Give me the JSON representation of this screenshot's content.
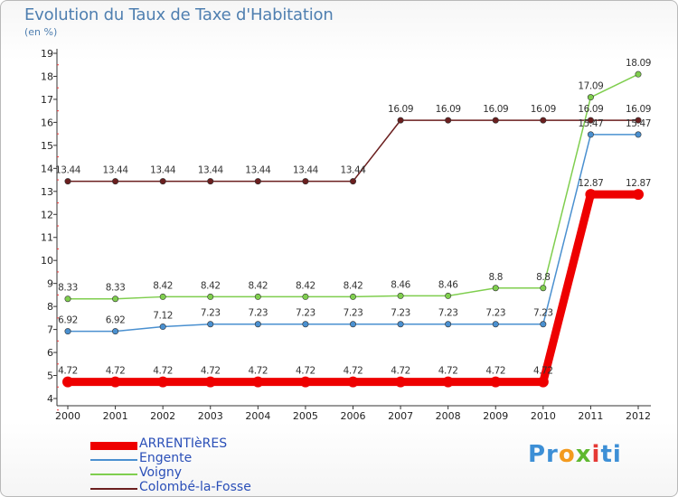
{
  "title": "Evolution du Taux de Taxe d'Habitation",
  "subtitle": "(en %)",
  "logo": {
    "text_parts": [
      "Pr",
      "o",
      "x",
      "i",
      "ti"
    ],
    "colors": [
      "#3d8fd6",
      "#f39a1e",
      "#5fb830",
      "#e53935",
      "#3d8fd6"
    ]
  },
  "chart_data": {
    "type": "line",
    "title": "Evolution du Taux de Taxe d'Habitation",
    "ylabel": "(en %)",
    "xlabel": "",
    "ylim": [
      4,
      19
    ],
    "yticks": [
      4,
      5,
      6,
      7,
      8,
      9,
      10,
      11,
      12,
      13,
      14,
      15,
      16,
      17,
      18,
      19
    ],
    "categories": [
      "2000",
      "2001",
      "2002",
      "2003",
      "2004",
      "2005",
      "2006",
      "2007",
      "2008",
      "2009",
      "2010",
      "2011",
      "2012"
    ],
    "series": [
      {
        "name": "ARRENTIèRES",
        "color": "#ee0000",
        "values": [
          4.72,
          4.72,
          4.72,
          4.72,
          4.72,
          4.72,
          4.72,
          4.72,
          4.72,
          4.72,
          4.72,
          12.87,
          12.87
        ],
        "labels": [
          "4.72",
          "4.72",
          "4.72",
          "4.72",
          "4.72",
          "4.72",
          "4.72",
          "4.72",
          "4.72",
          "4.72",
          "4.72",
          "12.87",
          "12.87"
        ]
      },
      {
        "name": "Engente",
        "color": "#4a90d0",
        "values": [
          6.92,
          6.92,
          7.12,
          7.23,
          7.23,
          7.23,
          7.23,
          7.23,
          7.23,
          7.23,
          7.23,
          15.47,
          15.47
        ],
        "labels": [
          "6.92",
          "6.92",
          "7.12",
          "7.23",
          "7.23",
          "7.23",
          "7.23",
          "7.23",
          "7.23",
          "7.23",
          "7.23",
          "15.47",
          "15.47"
        ]
      },
      {
        "name": "Voigny",
        "color": "#7fce4e",
        "values": [
          8.33,
          8.33,
          8.42,
          8.42,
          8.42,
          8.42,
          8.42,
          8.46,
          8.46,
          8.8,
          8.8,
          17.09,
          18.09
        ],
        "labels": [
          "8.33",
          "8.33",
          "8.42",
          "8.42",
          "8.42",
          "8.42",
          "8.42",
          "8.46",
          "8.46",
          "8.8",
          "8.8",
          "17.09",
          "18.09"
        ]
      },
      {
        "name": "Colombé-la-Fosse",
        "color": "#6b1f1f",
        "values": [
          13.44,
          13.44,
          13.44,
          13.44,
          13.44,
          13.44,
          13.44,
          16.09,
          16.09,
          16.09,
          16.09,
          16.09,
          16.09
        ],
        "labels": [
          "13.44",
          "13.44",
          "13.44",
          "13.44",
          "13.44",
          "13.44",
          "13.44",
          "16.09",
          "16.09",
          "16.09",
          "16.09",
          "16.09",
          "16.09"
        ]
      }
    ],
    "legend": "bottom-left",
    "grid": false
  }
}
